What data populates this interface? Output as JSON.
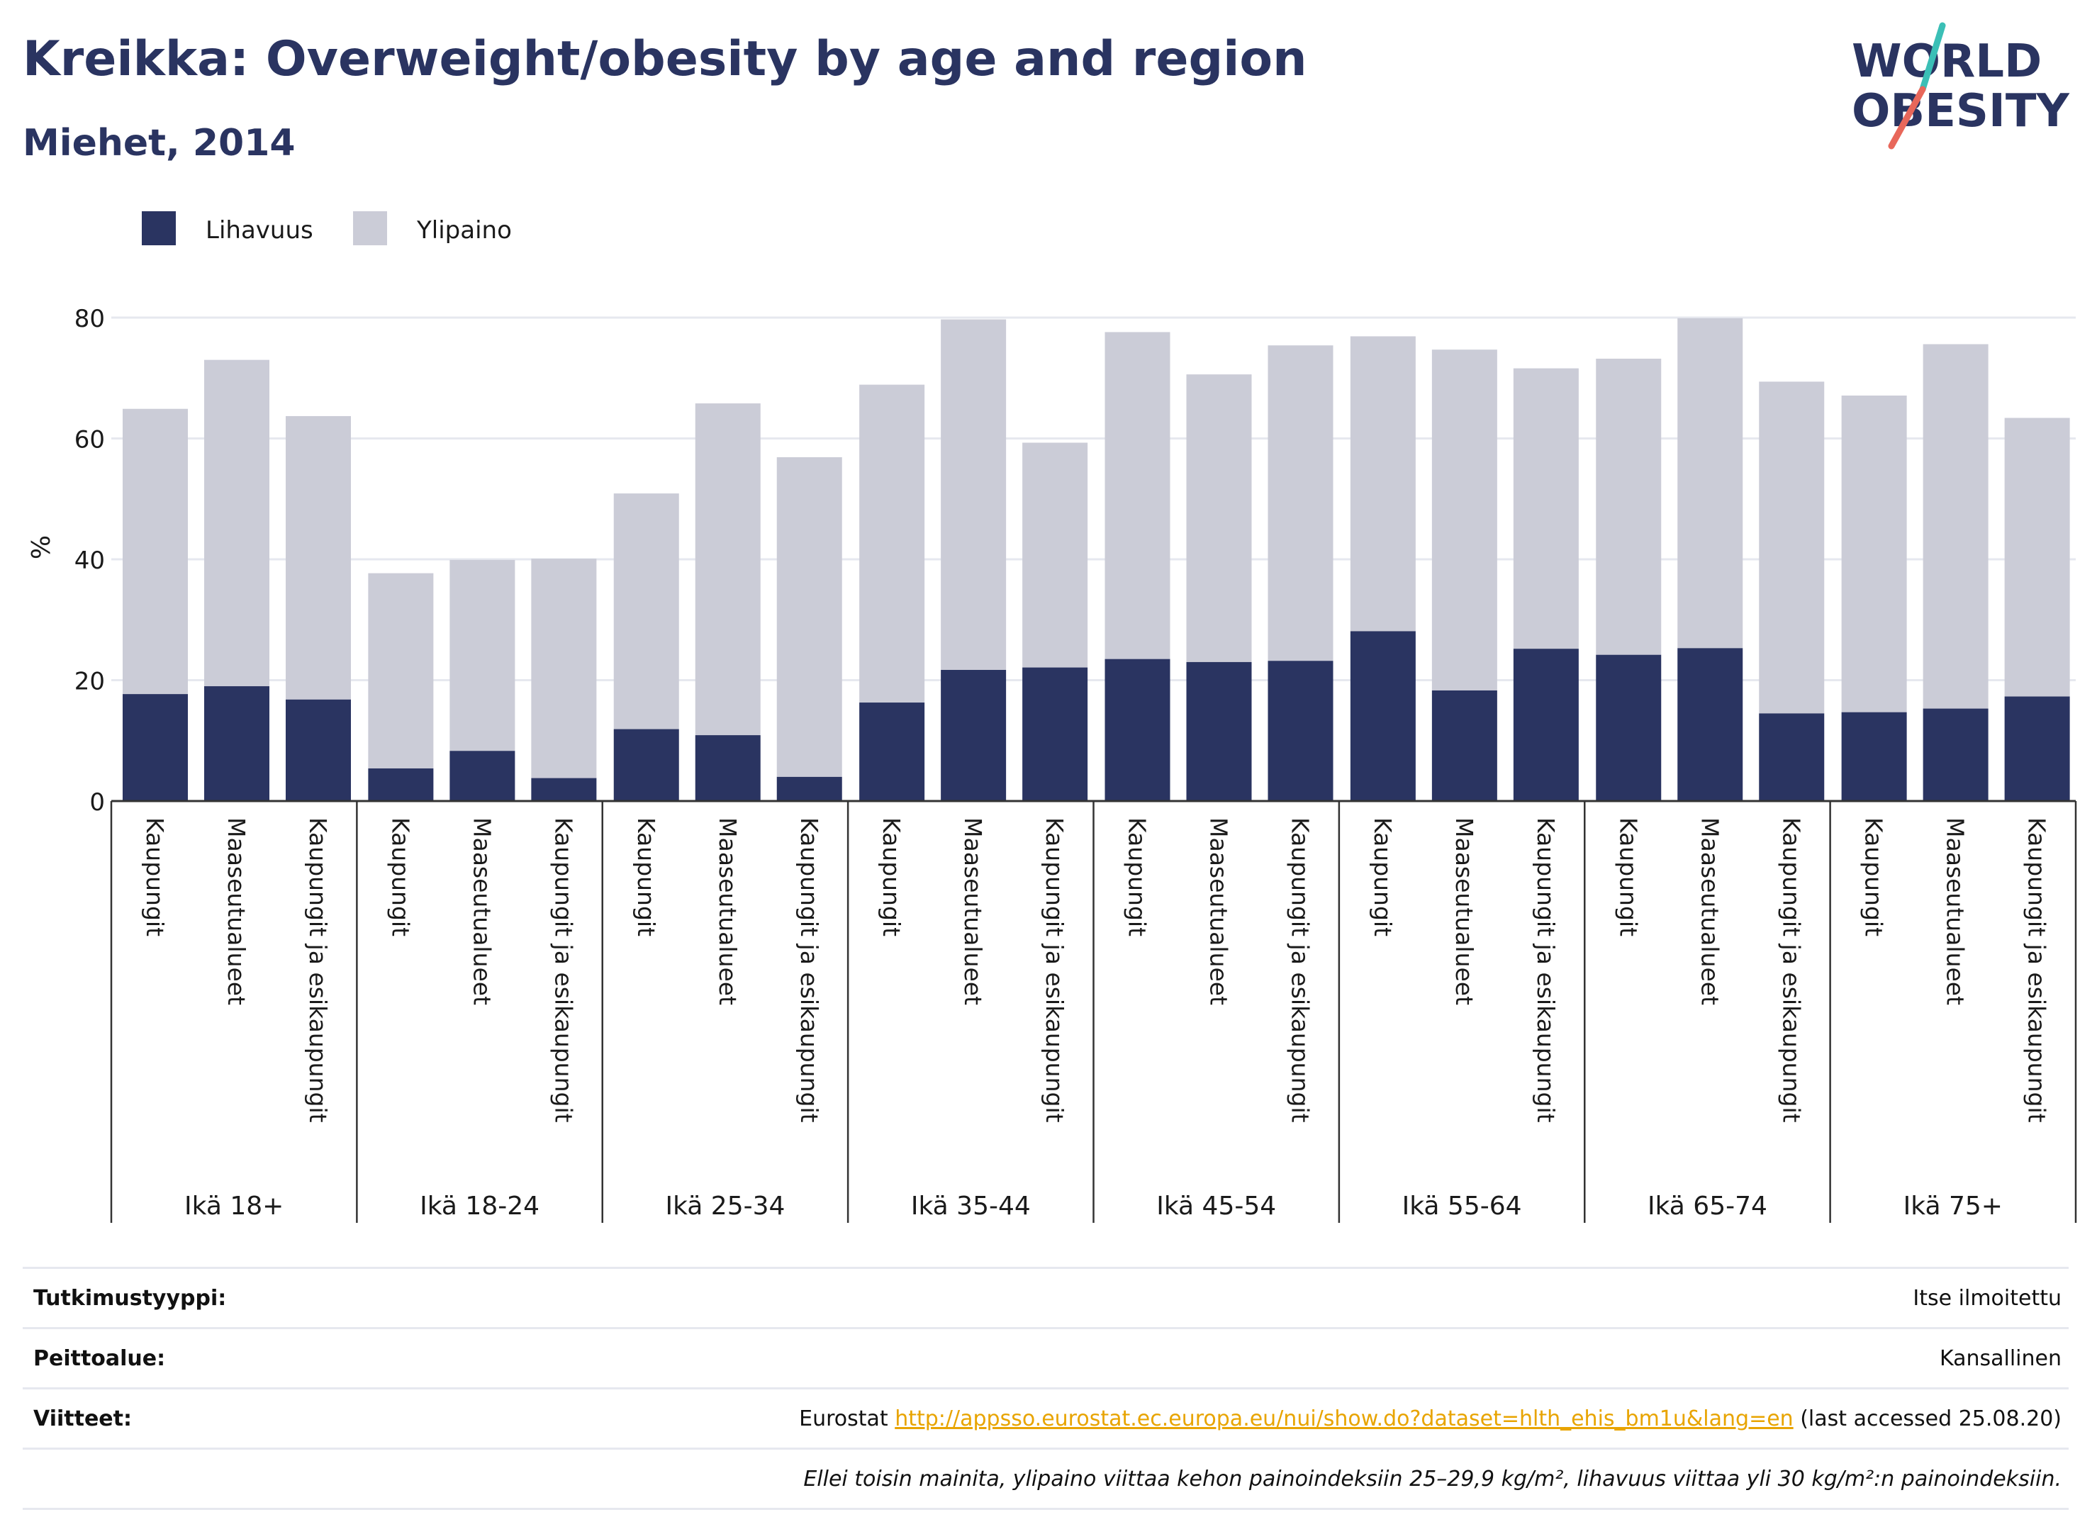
{
  "header": {
    "title": "Kreikka: Overweight/obesity by age and region",
    "subtitle": "Miehet, 2014"
  },
  "logo": {
    "line1": "WORLD",
    "line2": "OBESITY",
    "colors": {
      "text": "#2a3461",
      "slash_teal": "#3bbfb6",
      "slash_red": "#e8675a"
    }
  },
  "colors": {
    "obesity": "#2a3461",
    "overweight": "#cbccd7",
    "grid": "#e6e8ef",
    "axis": "#333333"
  },
  "chart_data": {
    "type": "bar",
    "stacked": true,
    "ylabel": "%",
    "ylim": [
      0,
      80
    ],
    "yticks": [
      0,
      20,
      40,
      60,
      80
    ],
    "grid": true,
    "legend_position": "top-left",
    "series": [
      {
        "name": "Lihavuus",
        "color": "#2a3461"
      },
      {
        "name": "Ylipaino",
        "color": "#cbccd7"
      }
    ],
    "groups": [
      {
        "label": "Ikä 18+",
        "bars": [
          {
            "category": "Kaupungit",
            "obesity": 17.7,
            "total": 64.9
          },
          {
            "category": "Maaseutualueet",
            "obesity": 19.0,
            "total": 73.0
          },
          {
            "category": "Kaupungit ja esikaupungit",
            "obesity": 16.8,
            "total": 63.7
          }
        ]
      },
      {
        "label": "Ikä 18-24",
        "bars": [
          {
            "category": "Kaupungit",
            "obesity": 5.4,
            "total": 37.7
          },
          {
            "category": "Maaseutualueet",
            "obesity": 8.3,
            "total": 39.9
          },
          {
            "category": "Kaupungit ja esikaupungit",
            "obesity": 3.8,
            "total": 40.1
          }
        ]
      },
      {
        "label": "Ikä 25-34",
        "bars": [
          {
            "category": "Kaupungit",
            "obesity": 11.9,
            "total": 50.9
          },
          {
            "category": "Maaseutualueet",
            "obesity": 10.9,
            "total": 65.8
          },
          {
            "category": "Kaupungit ja esikaupungit",
            "obesity": 4.0,
            "total": 56.9
          }
        ]
      },
      {
        "label": "Ikä 35-44",
        "bars": [
          {
            "category": "Kaupungit",
            "obesity": 16.3,
            "total": 68.9
          },
          {
            "category": "Maaseutualueet",
            "obesity": 21.7,
            "total": 79.7
          },
          {
            "category": "Kaupungit ja esikaupungit",
            "obesity": 22.1,
            "total": 59.3
          }
        ]
      },
      {
        "label": "Ikä 45-54",
        "bars": [
          {
            "category": "Kaupungit",
            "obesity": 23.5,
            "total": 77.6
          },
          {
            "category": "Maaseutualueet",
            "obesity": 23.0,
            "total": 70.6
          },
          {
            "category": "Kaupungit ja esikaupungit",
            "obesity": 23.2,
            "total": 75.4
          }
        ]
      },
      {
        "label": "Ikä 55-64",
        "bars": [
          {
            "category": "Kaupungit",
            "obesity": 28.1,
            "total": 76.9
          },
          {
            "category": "Maaseutualueet",
            "obesity": 18.3,
            "total": 74.7
          },
          {
            "category": "Kaupungit ja esikaupungit",
            "obesity": 25.2,
            "total": 71.6
          }
        ]
      },
      {
        "label": "Ikä 65-74",
        "bars": [
          {
            "category": "Kaupungit",
            "obesity": 24.2,
            "total": 73.2
          },
          {
            "category": "Maaseutualueet",
            "obesity": 25.3,
            "total": 79.9
          },
          {
            "category": "Kaupungit ja esikaupungit",
            "obesity": 14.5,
            "total": 69.4
          }
        ]
      },
      {
        "label": "Ikä 75+",
        "bars": [
          {
            "category": "Kaupungit",
            "obesity": 14.7,
            "total": 67.1
          },
          {
            "category": "Maaseutualueet",
            "obesity": 15.3,
            "total": 75.6
          },
          {
            "category": "Kaupungit ja esikaupungit",
            "obesity": 17.3,
            "total": 63.4
          }
        ]
      }
    ]
  },
  "meta": {
    "rows": [
      {
        "label": "Tutkimustyyppi:",
        "value": "Itse ilmoitettu"
      },
      {
        "label": "Peittoalue:",
        "value": "Kansallinen"
      },
      {
        "label": "Viitteet:",
        "prefix": "Eurostat ",
        "link": "http://appsso.eurostat.ec.europa.eu/nui/show.do?dataset=hlth_ehis_bm1u&lang=en",
        "suffix": " (last accessed 25.08.20)"
      },
      {
        "label": "",
        "note": "Ellei toisin mainita, ylipaino viittaa kehon painoindeksiin 25–29,9 kg/m², lihavuus viittaa yli 30 kg/m²:n painoindeksiin."
      }
    ]
  }
}
